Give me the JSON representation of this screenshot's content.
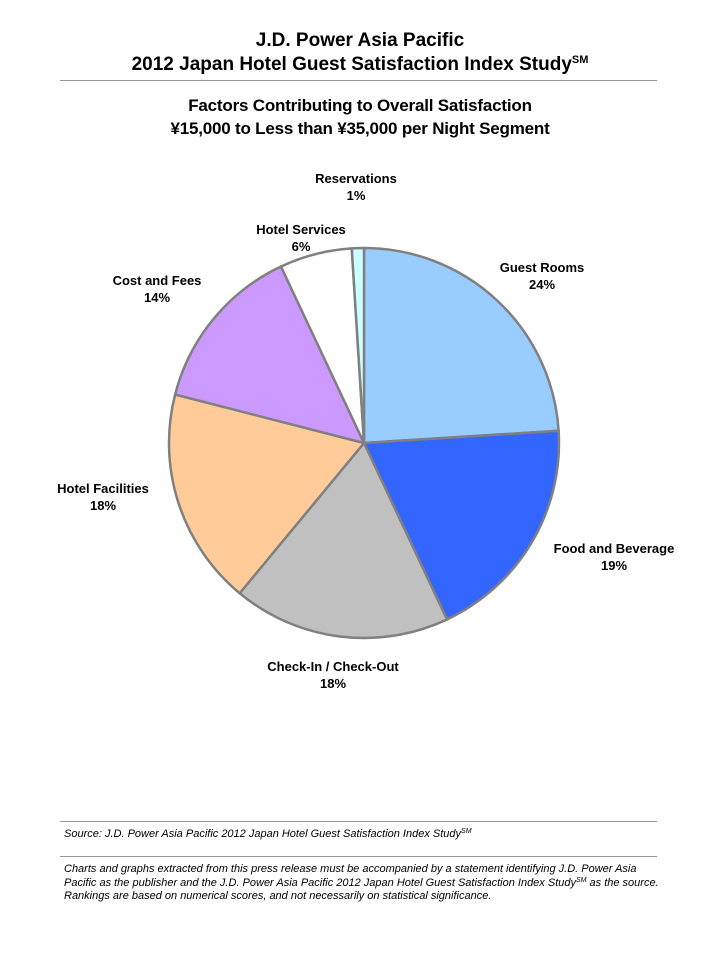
{
  "header": {
    "line1": "J.D. Power Asia Pacific",
    "line2": "2012 Japan Hotel Guest Satisfaction Index Study",
    "line2_sup": "SM"
  },
  "chart_data": {
    "type": "pie",
    "title": "Factors Contributing to Overall Satisfaction",
    "subtitle": "¥15,000 to Less than ¥35,000 per Night Segment",
    "slices": [
      {
        "label": "Guest Rooms",
        "value": 24,
        "display": "24%",
        "color": "#99ccff"
      },
      {
        "label": "Food and Beverage",
        "value": 19,
        "display": "19%",
        "color": "#3366ff"
      },
      {
        "label": "Check-In / Check-Out",
        "value": 18,
        "display": "18%",
        "color": "#c0c0c0"
      },
      {
        "label": "Hotel Facilities",
        "value": 18,
        "display": "18%",
        "color": "#ffcc99"
      },
      {
        "label": "Cost and Fees",
        "value": 14,
        "display": "14%",
        "color": "#cc99ff"
      },
      {
        "label": "Hotel Services",
        "value": 6,
        "display": "6%",
        "color": "#ffffff"
      },
      {
        "label": "Reservations",
        "value": 1,
        "display": "1%",
        "color": "#ccffff"
      }
    ],
    "start_angle_deg": 0,
    "direction": "clockwise",
    "slice_border_color": "#808080",
    "legend": "none"
  },
  "footer": {
    "source": "Source: J.D. Power Asia Pacific 2012 Japan Hotel Guest Satisfaction Index Study",
    "source_sup": "SM",
    "disclaimer_a": "Charts and graphs extracted from this press release must be accompanied by a statement identifying J.D. Power Asia Pacific as the publisher and the J.D. Power Asia Pacific 2012 Japan Hotel Guest Satisfaction Index Study",
    "disclaimer_sup": "SM",
    "disclaimer_b": " as the source. Rankings are based on numerical scores, and not necessarily on statistical significance."
  }
}
